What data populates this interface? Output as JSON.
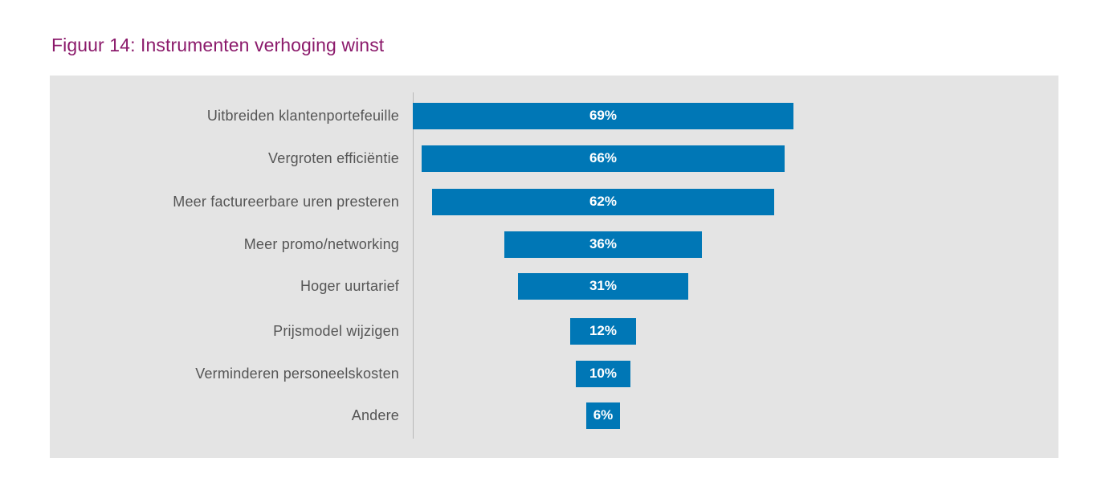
{
  "figure_title": "Figuur 14: Instrumenten verhoging winst",
  "colors": {
    "title": "#8b1a6b",
    "bar": "#0077b6",
    "panel_background": "#e4e4e4",
    "bar_label": "#ffffff",
    "category_label": "#555555"
  },
  "chart_data": {
    "type": "bar",
    "orientation": "horizontal",
    "style": "centered funnel",
    "title": "Figuur 14: Instrumenten verhoging winst",
    "xlabel": "",
    "ylabel": "",
    "unit": "%",
    "xlim": [
      0,
      100
    ],
    "grid": false,
    "legend": "none",
    "categories": [
      "Uitbreiden klantenportefeuille",
      "Vergroten efficiëntie",
      "Meer factureerbare uren presteren",
      "Meer promo/networking",
      "Hoger uurtarief",
      "Prijsmodel wijzigen",
      "Verminderen personeelskosten",
      "Andere"
    ],
    "values": [
      69,
      66,
      62,
      36,
      31,
      12,
      10,
      6
    ],
    "value_labels": [
      "69%",
      "66%",
      "62%",
      "36%",
      "31%",
      "12%",
      "10%",
      "6%"
    ]
  }
}
